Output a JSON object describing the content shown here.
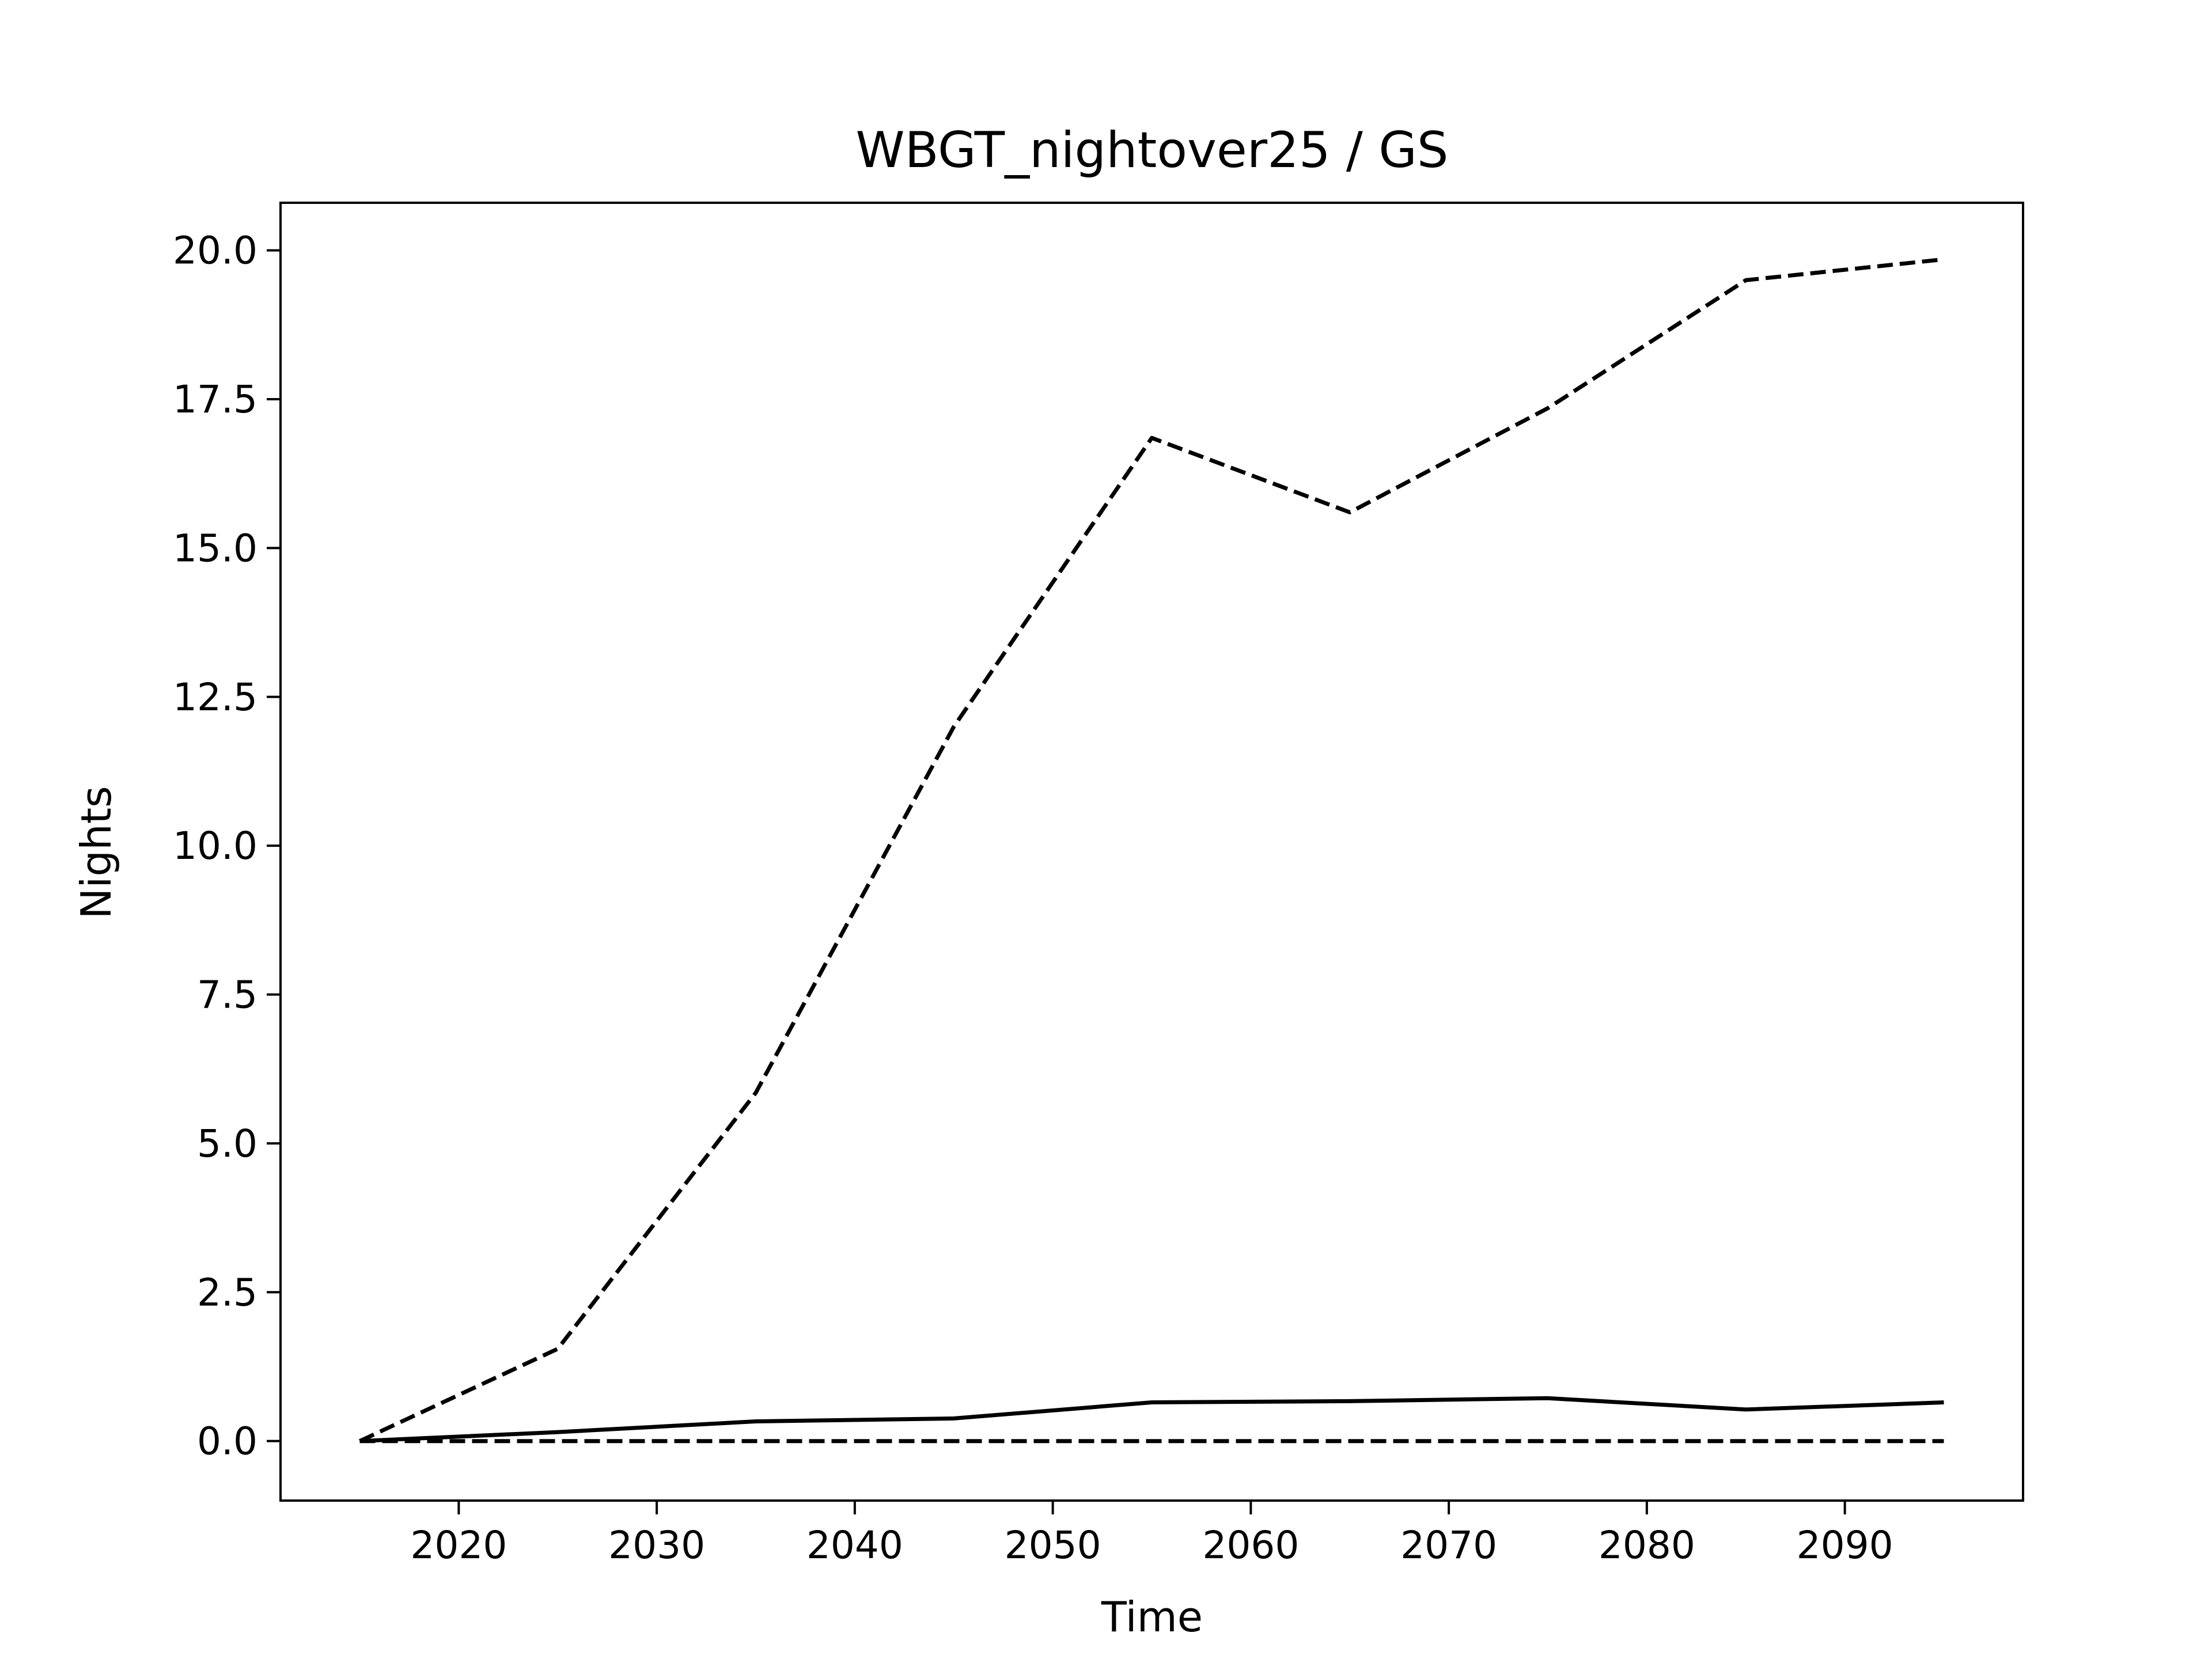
{
  "chart_data": {
    "type": "line",
    "title": "WBGT_nightover25 / GS",
    "xlabel": "Time",
    "ylabel": "Nights",
    "xlim": [
      2011,
      2099
    ],
    "ylim": [
      -1.0,
      20.8
    ],
    "xticks": [
      2020,
      2030,
      2040,
      2050,
      2060,
      2070,
      2080,
      2090
    ],
    "yticks": [
      0.0,
      2.5,
      5.0,
      7.5,
      10.0,
      12.5,
      15.0,
      17.5,
      20.0
    ],
    "ytick_labels": [
      "0.0",
      "2.5",
      "5.0",
      "7.5",
      "10.0",
      "12.5",
      "15.0",
      "17.5",
      "20.0"
    ],
    "xtick_labels": [
      "2020",
      "2030",
      "2040",
      "2050",
      "2060",
      "2070",
      "2080",
      "2090"
    ],
    "grid": false,
    "x": [
      2015,
      2025,
      2035,
      2045,
      2055,
      2065,
      2075,
      2085,
      2095
    ],
    "series": [
      {
        "style": "dashed",
        "color": "#000000",
        "values": [
          0.0,
          1.55,
          5.85,
          12.0,
          16.85,
          15.6,
          17.35,
          19.5,
          19.85
        ]
      },
      {
        "style": "solid",
        "color": "#000000",
        "values": [
          0.0,
          0.15,
          0.33,
          0.38,
          0.65,
          0.67,
          0.72,
          0.53,
          0.65
        ]
      },
      {
        "style": "dashed",
        "color": "#000000",
        "values": [
          0.0,
          0.0,
          0.0,
          0.0,
          0.0,
          0.0,
          0.0,
          0.0,
          0.0
        ]
      }
    ]
  }
}
